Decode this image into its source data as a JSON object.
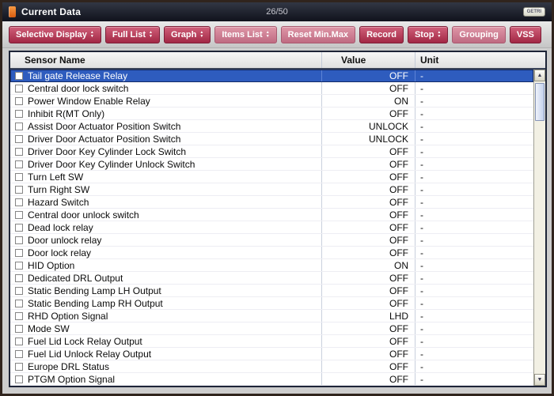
{
  "titlebar": {
    "title": "Current Data",
    "counter": "26/50",
    "logo": "GETRI"
  },
  "icons": {
    "scroll_up": "▲",
    "scroll_down": "▼",
    "sort_up": "▲",
    "sort_down": "▼"
  },
  "toolbar": {
    "buttons": [
      {
        "label": "Selective Display",
        "arrows": true,
        "disabled": false
      },
      {
        "label": "Full List",
        "arrows": true,
        "disabled": false
      },
      {
        "label": "Graph",
        "arrows": true,
        "disabled": false
      },
      {
        "label": "Items List",
        "arrows": true,
        "disabled": true
      },
      {
        "label": "Reset Min.Max",
        "arrows": false,
        "disabled": true
      },
      {
        "label": "Record",
        "arrows": false,
        "disabled": false
      },
      {
        "label": "Stop",
        "arrows": true,
        "disabled": false
      },
      {
        "label": "Grouping",
        "arrows": false,
        "disabled": true
      },
      {
        "label": "VSS",
        "arrows": false,
        "disabled": false
      }
    ]
  },
  "table": {
    "columns": [
      "Sensor Name",
      "Value",
      "Unit"
    ],
    "rows": [
      {
        "name": "Tail gate Release Relay",
        "value": "OFF",
        "unit": "-",
        "selected": true
      },
      {
        "name": "Central door lock switch",
        "value": "OFF",
        "unit": "-",
        "selected": false
      },
      {
        "name": "Power Window Enable Relay",
        "value": "ON",
        "unit": "-",
        "selected": false
      },
      {
        "name": "Inhibit R(MT Only)",
        "value": "OFF",
        "unit": "-",
        "selected": false
      },
      {
        "name": "Assist Door Actuator Position Switch",
        "value": "UNLOCK",
        "unit": "-",
        "selected": false
      },
      {
        "name": "Driver Door Actuator Position Switch",
        "value": "UNLOCK",
        "unit": "-",
        "selected": false
      },
      {
        "name": "Driver Door Key Cylinder Lock Switch",
        "value": "OFF",
        "unit": "-",
        "selected": false
      },
      {
        "name": "Driver Door Key Cylinder Unlock Switch",
        "value": "OFF",
        "unit": "-",
        "selected": false
      },
      {
        "name": "Turn Left SW",
        "value": "OFF",
        "unit": "-",
        "selected": false
      },
      {
        "name": "Turn Right SW",
        "value": "OFF",
        "unit": "-",
        "selected": false
      },
      {
        "name": "Hazard Switch",
        "value": "OFF",
        "unit": "-",
        "selected": false
      },
      {
        "name": "Central door unlock switch",
        "value": "OFF",
        "unit": "-",
        "selected": false
      },
      {
        "name": "Dead lock relay",
        "value": "OFF",
        "unit": "-",
        "selected": false
      },
      {
        "name": "Door unlock relay",
        "value": "OFF",
        "unit": "-",
        "selected": false
      },
      {
        "name": "Door lock relay",
        "value": "OFF",
        "unit": "-",
        "selected": false
      },
      {
        "name": "HID Option",
        "value": "ON",
        "unit": "-",
        "selected": false
      },
      {
        "name": "Dedicated DRL Output",
        "value": "OFF",
        "unit": "-",
        "selected": false
      },
      {
        "name": "Static Bending Lamp LH Output",
        "value": "OFF",
        "unit": "-",
        "selected": false
      },
      {
        "name": "Static Bending Lamp RH Output",
        "value": "OFF",
        "unit": "-",
        "selected": false
      },
      {
        "name": "RHD Option Signal",
        "value": "LHD",
        "unit": "-",
        "selected": false
      },
      {
        "name": "Mode SW",
        "value": "OFF",
        "unit": "-",
        "selected": false
      },
      {
        "name": "Fuel Lid Lock Relay Output",
        "value": "OFF",
        "unit": "-",
        "selected": false
      },
      {
        "name": "Fuel Lid Unlock Relay Output",
        "value": "OFF",
        "unit": "-",
        "selected": false
      },
      {
        "name": "Europe DRL Status",
        "value": "OFF",
        "unit": "-",
        "selected": false
      },
      {
        "name": "PTGM Option Signal",
        "value": "OFF",
        "unit": "-",
        "selected": false
      }
    ]
  },
  "colors": {
    "button_crimson": "#b23152",
    "button_crimson_disabled": "#cf8398",
    "selected_row_blue": "#2e5cbe",
    "titlebar_dark": "#14161f",
    "title_icon_orange": "#e8751f",
    "column_separator": "#c9d0dd"
  }
}
